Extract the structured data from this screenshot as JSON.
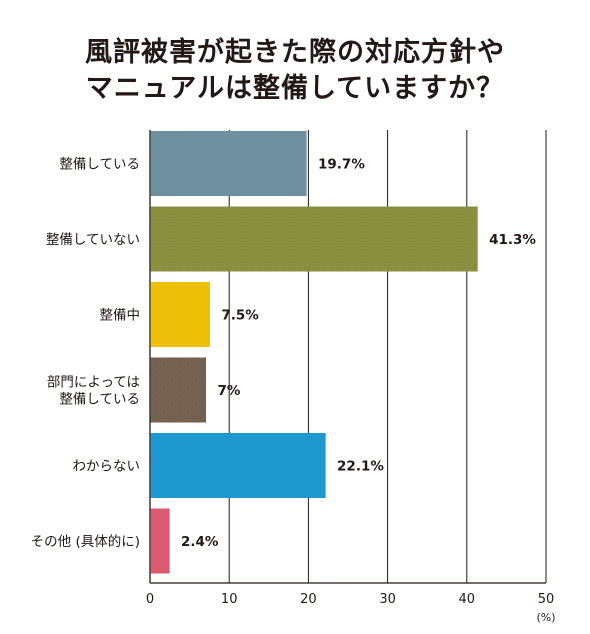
{
  "chart_data": {
    "type": "bar",
    "orientation": "horizontal",
    "title_lines": [
      "風評被害が起きた際の対応方針や",
      "マニュアルは整備していますか？"
    ],
    "categories": [
      [
        "整備している"
      ],
      [
        "整備していない"
      ],
      [
        "整備中"
      ],
      [
        "部門によっては",
        "整備している"
      ],
      [
        "わからない"
      ],
      [
        "その他 (具体的に)"
      ]
    ],
    "values": [
      19.7,
      41.3,
      7.5,
      7,
      22.1,
      2.4
    ],
    "value_labels": [
      "19.7%",
      "41.3%",
      "7.5%",
      "7%",
      "22.1%",
      "2.4%"
    ],
    "colors": [
      "#6e909f",
      "#8c9140",
      "#edc00a",
      "#7a6654",
      "#1f97cf",
      "#da5a6e"
    ],
    "x_ticks": [
      0,
      10,
      20,
      30,
      40,
      50
    ],
    "xlim": [
      0,
      50
    ],
    "x_unit": "(%)",
    "grid": true
  }
}
